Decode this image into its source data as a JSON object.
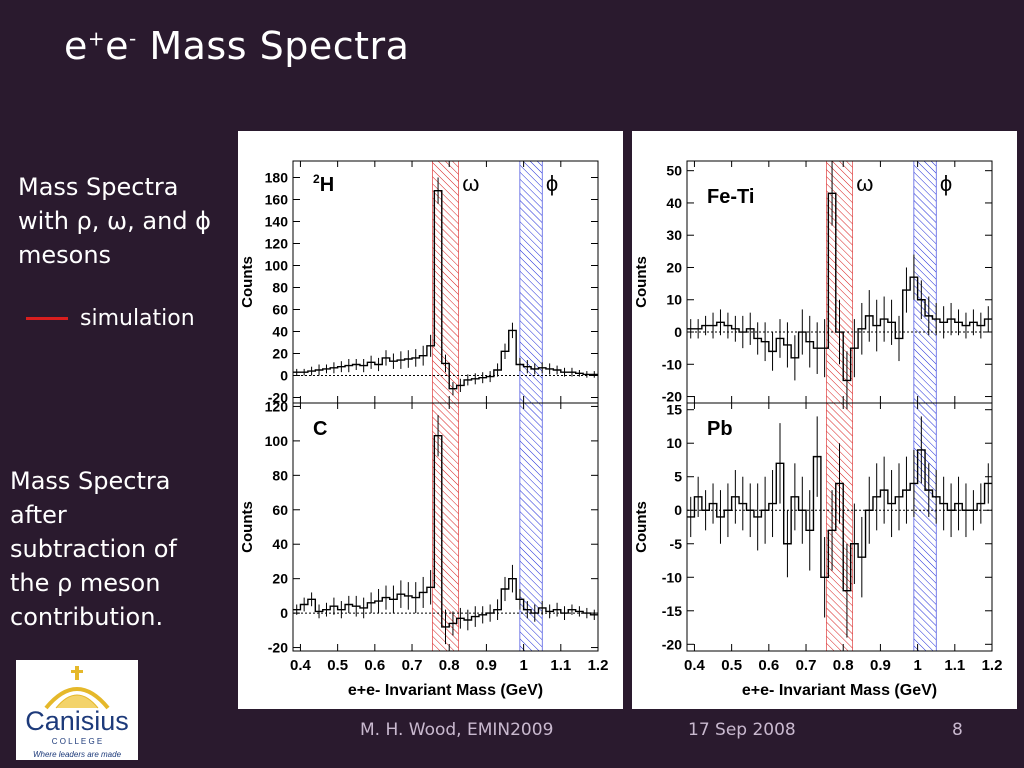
{
  "slide": {
    "title_main": "e",
    "title_sup1": "+",
    "title_mid": "e",
    "title_sup2": "-",
    "title_rest": " Mass Spectra",
    "text1_line1": "Mass Spectra",
    "text1_line2": "with ρ, ω, and ϕ",
    "text1_line3": "mesons",
    "legend_label": "simulation",
    "text2_line1": "Mass Spectra",
    "text2_line2": "after",
    "text2_line3": "subtraction of",
    "text2_line4": "the ρ meson",
    "text2_line5": "contribution.",
    "footer_author": "M. H. Wood, EMIN2009",
    "footer_date": "17 Sep 2008",
    "footer_page": "8",
    "logo_name": "Canisius",
    "logo_sub": "C O L L E G E",
    "logo_tag": "Where leaders are made",
    "colors": {
      "background": "#2a1a2e",
      "simulation": "#d81e1e",
      "omega_band": "#d81e1e",
      "phi_band": "#1e2ad8"
    }
  },
  "chart_data": [
    {
      "type": "histogram",
      "label": "2H",
      "label_base": "H",
      "label_sup": "2",
      "ylabel": "Counts",
      "xlim": [
        0.38,
        1.2
      ],
      "ylim": [
        -25,
        195
      ],
      "yticks": [
        -20,
        0,
        20,
        40,
        60,
        80,
        100,
        120,
        140,
        160,
        180
      ],
      "omega_band": [
        0.755,
        0.825
      ],
      "phi_band": [
        0.99,
        1.05
      ],
      "band_labels": [
        "ω",
        "ϕ"
      ],
      "bin_width": 0.02,
      "x_start": 0.38,
      "values": [
        3,
        3,
        4,
        5,
        6,
        7,
        8,
        9,
        10,
        9,
        12,
        10,
        16,
        13,
        14,
        15,
        16,
        18,
        27,
        168,
        11,
        -12,
        -9,
        -4,
        -3,
        -2,
        -1,
        5,
        22,
        41,
        10,
        8,
        6,
        7,
        6,
        5,
        3,
        3,
        2,
        1,
        1
      ],
      "errors": [
        3,
        3,
        4,
        5,
        4,
        5,
        5,
        6,
        5,
        6,
        6,
        6,
        7,
        7,
        8,
        8,
        8,
        9,
        10,
        12,
        8,
        6,
        6,
        5,
        5,
        5,
        5,
        6,
        7,
        7,
        6,
        6,
        5,
        5,
        5,
        4,
        4,
        4,
        3,
        3,
        3
      ]
    },
    {
      "type": "histogram",
      "label": "Fe-Ti",
      "ylabel": "Counts",
      "xlim": [
        0.38,
        1.2
      ],
      "ylim": [
        -22,
        53
      ],
      "yticks": [
        -20,
        -10,
        0,
        10,
        20,
        30,
        40,
        50
      ],
      "omega_band": [
        0.755,
        0.825
      ],
      "phi_band": [
        0.99,
        1.05
      ],
      "band_labels": [
        "ω",
        "ϕ"
      ],
      "bin_width": 0.02,
      "x_start": 0.38,
      "values": [
        1,
        1,
        2,
        2,
        3,
        2,
        1,
        0,
        1,
        -2,
        -3,
        -6,
        -2,
        -4,
        -8,
        0,
        -3,
        -5,
        -5,
        43,
        0,
        -15,
        -5,
        1,
        5,
        2,
        4,
        3,
        -2,
        13,
        17,
        10,
        5,
        4,
        3,
        4,
        3,
        2,
        3,
        2,
        4
      ],
      "errors": [
        3,
        3,
        3,
        4,
        4,
        4,
        4,
        5,
        5,
        5,
        6,
        6,
        6,
        7,
        7,
        7,
        8,
        8,
        9,
        10,
        10,
        9,
        9,
        8,
        8,
        8,
        7,
        7,
        7,
        7,
        7,
        6,
        6,
        5,
        5,
        5,
        4,
        4,
        4,
        4,
        4
      ]
    },
    {
      "type": "histogram",
      "label": "C",
      "ylabel": "Counts",
      "xlim": [
        0.38,
        1.2
      ],
      "ylim": [
        -22,
        122
      ],
      "yticks": [
        -20,
        0,
        20,
        40,
        60,
        80,
        100,
        120
      ],
      "omega_band": [
        0.755,
        0.825
      ],
      "phi_band": [
        0.99,
        1.05
      ],
      "band_labels": [],
      "bin_width": 0.02,
      "x_start": 0.38,
      "values": [
        2,
        5,
        8,
        1,
        2,
        4,
        2,
        5,
        4,
        3,
        6,
        7,
        9,
        8,
        11,
        10,
        9,
        12,
        15,
        103,
        -8,
        -6,
        -3,
        -4,
        -2,
        -1,
        0,
        2,
        14,
        20,
        8,
        2,
        0,
        3,
        1,
        2,
        0,
        2,
        1,
        0,
        -1
      ],
      "errors": [
        3,
        4,
        4,
        4,
        4,
        5,
        5,
        5,
        6,
        6,
        6,
        7,
        7,
        8,
        8,
        8,
        9,
        9,
        10,
        12,
        10,
        7,
        6,
        6,
        6,
        5,
        5,
        6,
        7,
        8,
        6,
        5,
        5,
        4,
        4,
        4,
        4,
        3,
        3,
        3,
        3
      ]
    },
    {
      "type": "histogram",
      "label": "Pb",
      "ylabel": "Counts",
      "xlabel": "e+e- Invariant Mass (GeV)",
      "xlim": [
        0.38,
        1.2
      ],
      "ylim": [
        -21,
        16
      ],
      "yticks": [
        -20,
        -15,
        -10,
        -5,
        0,
        5,
        10,
        15
      ],
      "xticks": [
        "0.4",
        "0.5",
        "0.6",
        "0.7",
        "0.8",
        "0.9",
        "1",
        "1.1",
        "1.2"
      ],
      "omega_band": [
        0.755,
        0.825
      ],
      "phi_band": [
        0.99,
        1.05
      ],
      "band_labels": [],
      "bin_width": 0.02,
      "x_start": 0.38,
      "values": [
        -1,
        2,
        0,
        1,
        -1,
        0,
        2,
        1,
        0,
        -1,
        0,
        1,
        7,
        -5,
        2,
        0,
        -3,
        8,
        -10,
        -3,
        4,
        -12,
        -5,
        -7,
        0,
        2,
        3,
        1,
        2,
        3,
        4,
        9,
        3,
        2,
        1,
        0,
        1,
        0,
        0,
        1,
        4
      ],
      "errors": [
        3,
        3,
        3,
        3,
        4,
        4,
        4,
        4,
        4,
        5,
        5,
        5,
        6,
        5,
        5,
        5,
        6,
        6,
        6,
        6,
        6,
        7,
        6,
        6,
        5,
        5,
        5,
        5,
        5,
        5,
        5,
        5,
        4,
        4,
        4,
        4,
        4,
        4,
        3,
        3,
        3
      ]
    }
  ]
}
